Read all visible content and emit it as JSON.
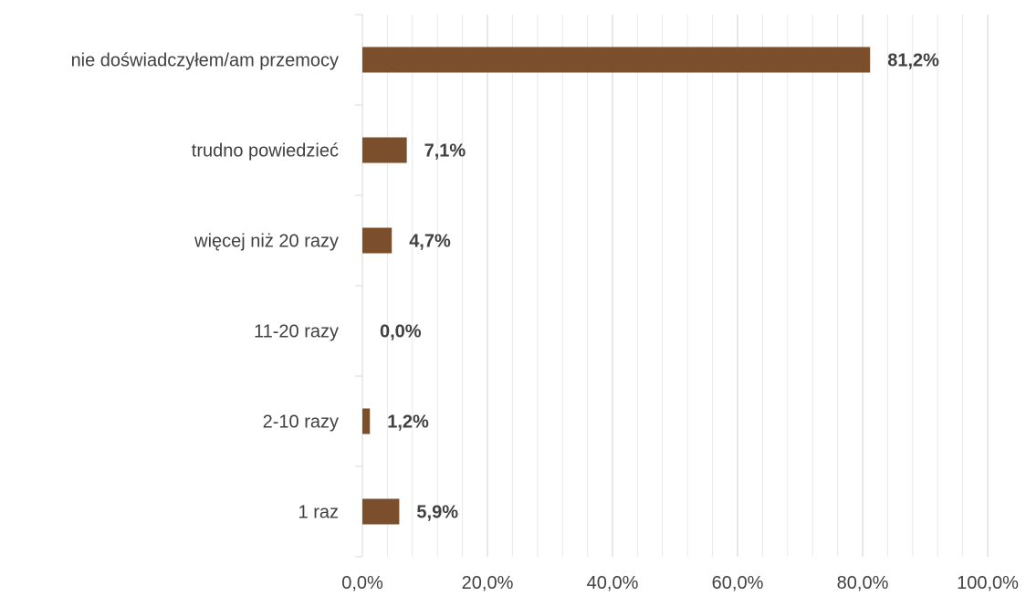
{
  "chart_data": {
    "type": "bar",
    "orientation": "horizontal",
    "categories": [
      "nie doświadczyłem/am przemocy",
      "trudno powiedzieć",
      "więcej niż 20 razy",
      "11-20 razy",
      "2-10 razy",
      "1 raz"
    ],
    "values": [
      81.2,
      7.1,
      4.7,
      0.0,
      1.2,
      5.9
    ],
    "value_labels": [
      "81,2%",
      "7,1%",
      "4,7%",
      "0,0%",
      "1,2%",
      "5,9%"
    ],
    "xlim": [
      0,
      100
    ],
    "xticks": [
      0,
      20,
      40,
      60,
      80,
      100
    ],
    "xtick_labels": [
      "0,0%",
      "20,0%",
      "40,0%",
      "60,0%",
      "80,0%",
      "100,0%"
    ],
    "grid": "vertical",
    "bar_color": "#7b4f2c",
    "grid_color": "#d9d9d9",
    "title": "",
    "xlabel": "",
    "ylabel": ""
  }
}
